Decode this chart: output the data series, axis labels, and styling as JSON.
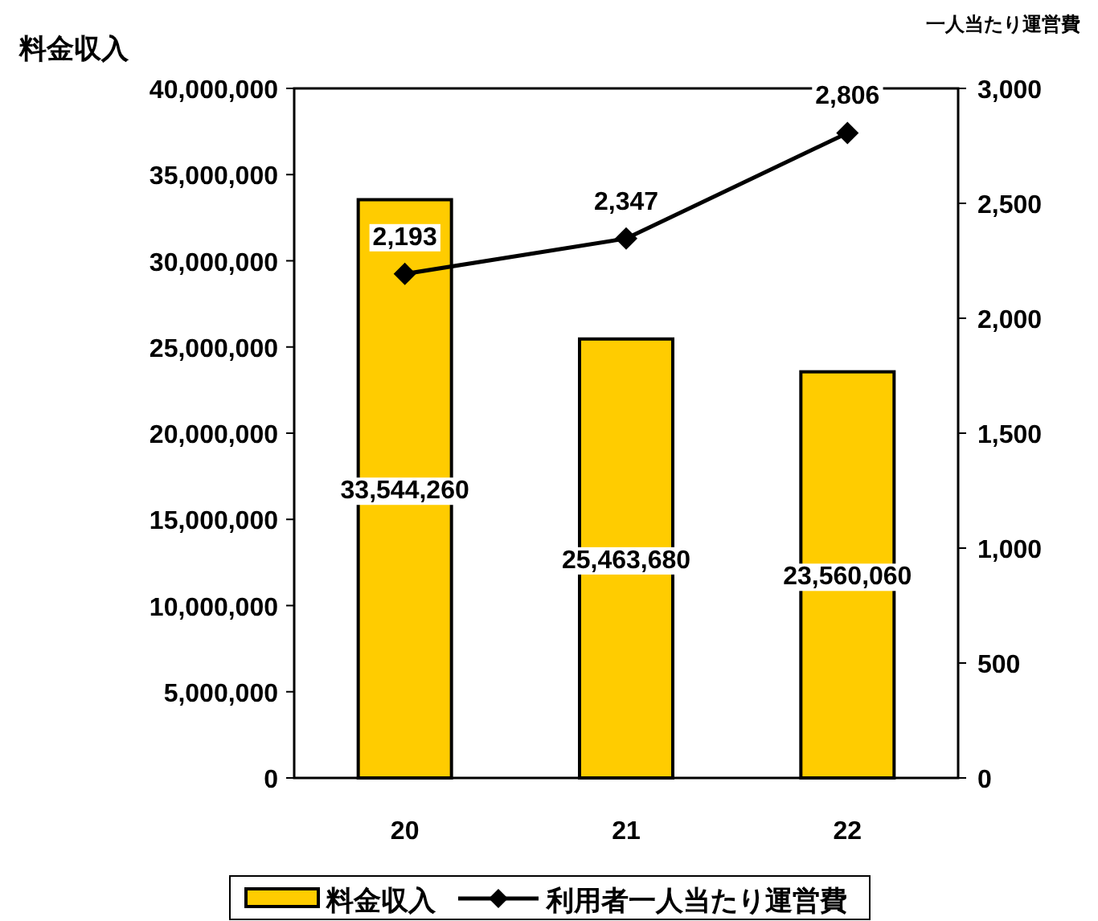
{
  "chart_data": {
    "type": "bar",
    "ylabel": "料金収入",
    "y2label": "一人当たり運営費",
    "categories": [
      "20",
      "21",
      "22"
    ],
    "series": [
      {
        "name": "料金収入",
        "color": "#ffcc00",
        "values": [
          33544260,
          25463680,
          23560060
        ],
        "value_labels": [
          "33,544,260",
          "25,463,680",
          "23,560,060"
        ]
      },
      {
        "name": "利用者一人当たり運営費",
        "type": "line",
        "axis": "y2",
        "color": "#000000",
        "marker": "diamond",
        "values": [
          2193,
          2347,
          2806
        ],
        "value_labels": [
          "2,193",
          "2,347",
          "2,806"
        ]
      }
    ],
    "ylim": [
      0,
      40000000
    ],
    "yticks": [
      {
        "value": 0,
        "label": "0"
      },
      {
        "value": 5000000,
        "label": "5,000,000"
      },
      {
        "value": 10000000,
        "label": "10,000,000"
      },
      {
        "value": 15000000,
        "label": "15,000,000"
      },
      {
        "value": 20000000,
        "label": "20,000,000"
      },
      {
        "value": 25000000,
        "label": "25,000,000"
      },
      {
        "value": 30000000,
        "label": "30,000,000"
      },
      {
        "value": 35000000,
        "label": "35,000,000"
      },
      {
        "value": 40000000,
        "label": "40,000,000"
      }
    ],
    "y2lim": [
      0,
      3000
    ],
    "y2ticks": [
      0,
      500,
      {
        "value": 1000,
        "label": "1,000"
      },
      {
        "value": 1500,
        "label": "1,500"
      },
      {
        "value": 2000,
        "label": "2,000"
      },
      {
        "value": 2500,
        "label": "2,500"
      },
      {
        "value": 3000,
        "label": "3,000"
      }
    ],
    "grid": false,
    "legend": "bottom"
  }
}
